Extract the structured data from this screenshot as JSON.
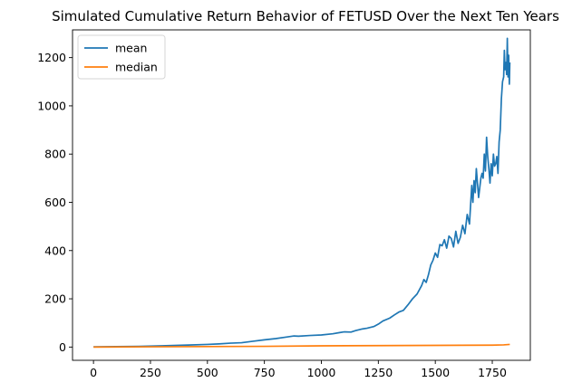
{
  "chart_data": {
    "type": "line",
    "title": "Simulated Cumulative Return Behavior of FETUSD Over the Next Ten Years",
    "xlabel": "",
    "ylabel": "",
    "xlim": [
      -92,
      1917
    ],
    "ylim": [
      -55,
      1315
    ],
    "xticks": [
      0,
      250,
      500,
      750,
      1000,
      1250,
      1500,
      1750
    ],
    "yticks": [
      0,
      200,
      400,
      600,
      800,
      1000,
      1200
    ],
    "grid": false,
    "legend_position": "upper left",
    "series": [
      {
        "name": "mean",
        "color": "#1f77b4",
        "points": [
          [
            0,
            1
          ],
          [
            100,
            2
          ],
          [
            200,
            3
          ],
          [
            300,
            5
          ],
          [
            400,
            8
          ],
          [
            500,
            11
          ],
          [
            550,
            13
          ],
          [
            600,
            16
          ],
          [
            650,
            18
          ],
          [
            700,
            24
          ],
          [
            750,
            30
          ],
          [
            800,
            35
          ],
          [
            850,
            42
          ],
          [
            880,
            46
          ],
          [
            900,
            45
          ],
          [
            950,
            48
          ],
          [
            1000,
            50
          ],
          [
            1050,
            55
          ],
          [
            1080,
            60
          ],
          [
            1100,
            63
          ],
          [
            1130,
            62
          ],
          [
            1150,
            68
          ],
          [
            1180,
            75
          ],
          [
            1200,
            78
          ],
          [
            1230,
            85
          ],
          [
            1250,
            95
          ],
          [
            1270,
            108
          ],
          [
            1300,
            120
          ],
          [
            1320,
            133
          ],
          [
            1340,
            145
          ],
          [
            1360,
            152
          ],
          [
            1380,
            175
          ],
          [
            1400,
            200
          ],
          [
            1420,
            220
          ],
          [
            1440,
            255
          ],
          [
            1450,
            280
          ],
          [
            1460,
            268
          ],
          [
            1470,
            300
          ],
          [
            1480,
            340
          ],
          [
            1490,
            360
          ],
          [
            1500,
            390
          ],
          [
            1510,
            372
          ],
          [
            1520,
            425
          ],
          [
            1530,
            420
          ],
          [
            1540,
            445
          ],
          [
            1550,
            410
          ],
          [
            1560,
            460
          ],
          [
            1570,
            450
          ],
          [
            1580,
            415
          ],
          [
            1590,
            480
          ],
          [
            1600,
            430
          ],
          [
            1610,
            455
          ],
          [
            1620,
            505
          ],
          [
            1630,
            470
          ],
          [
            1640,
            550
          ],
          [
            1650,
            510
          ],
          [
            1660,
            670
          ],
          [
            1665,
            600
          ],
          [
            1670,
            690
          ],
          [
            1675,
            640
          ],
          [
            1680,
            740
          ],
          [
            1690,
            620
          ],
          [
            1700,
            700
          ],
          [
            1705,
            720
          ],
          [
            1710,
            700
          ],
          [
            1715,
            800
          ],
          [
            1720,
            730
          ],
          [
            1725,
            870
          ],
          [
            1730,
            790
          ],
          [
            1735,
            740
          ],
          [
            1740,
            680
          ],
          [
            1745,
            760
          ],
          [
            1750,
            710
          ],
          [
            1755,
            800
          ],
          [
            1760,
            750
          ],
          [
            1765,
            760
          ],
          [
            1770,
            790
          ],
          [
            1775,
            720
          ],
          [
            1780,
            850
          ],
          [
            1785,
            900
          ],
          [
            1790,
            1030
          ],
          [
            1795,
            1100
          ],
          [
            1800,
            1120
          ],
          [
            1803,
            1230
          ],
          [
            1806,
            1150
          ],
          [
            1810,
            1180
          ],
          [
            1813,
            1130
          ],
          [
            1816,
            1280
          ],
          [
            1819,
            1120
          ],
          [
            1822,
            1210
          ],
          [
            1825,
            1090
          ],
          [
            1827,
            1180
          ]
        ]
      },
      {
        "name": "median",
        "color": "#ff7f0e",
        "points": [
          [
            0,
            0
          ],
          [
            250,
            1
          ],
          [
            500,
            2
          ],
          [
            750,
            3
          ],
          [
            1000,
            5
          ],
          [
            1250,
            6
          ],
          [
            1500,
            7
          ],
          [
            1750,
            8
          ],
          [
            1800,
            9
          ],
          [
            1827,
            11
          ]
        ]
      }
    ]
  }
}
